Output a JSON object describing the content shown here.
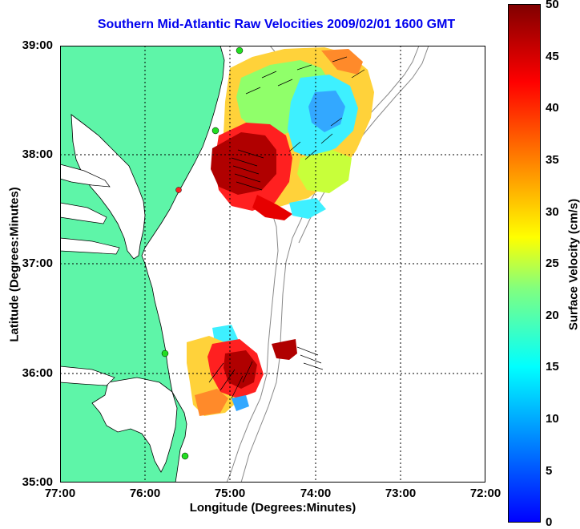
{
  "title": "Southern Mid-Atlantic Raw Velocities 2009/02/01 1600 GMT",
  "xlabel": "Longitude (Degrees:Minutes)",
  "ylabel": "Latitude (Degrees:Minutes)",
  "colorbar_label": "Surface Velocity (cm/s)",
  "x_ticks": [
    "77:00",
    "76:00",
    "75:00",
    "74:00",
    "73:00",
    "72:00"
  ],
  "y_ticks": [
    "39:00",
    "38:00",
    "37:00",
    "36:00",
    "35:00"
  ],
  "colorbar_ticks": [
    "50",
    "45",
    "40",
    "35",
    "30",
    "25",
    "20",
    "15",
    "10",
    "5",
    "0"
  ],
  "colors": {
    "land": "#5ef5a8",
    "water": "#ffffff",
    "title": "#0000ee",
    "station_green": "#22dd22",
    "station_red": "#ff2222"
  },
  "map": {
    "lon_range": [
      -77,
      -72
    ],
    "lat_range": [
      35,
      39
    ],
    "colormap": "jet",
    "velocity_range_cm_s": [
      0,
      50
    ],
    "grid": true
  }
}
